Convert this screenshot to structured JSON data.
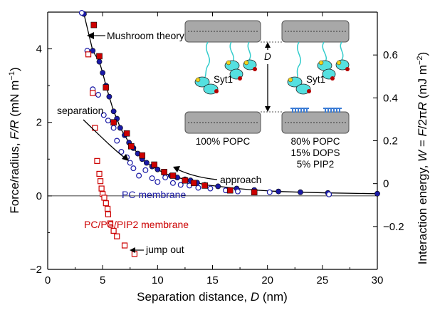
{
  "chart_data": {
    "type": "scatter",
    "title": "",
    "xlabel": {
      "main": "Separation distance, ",
      "var": "D",
      "unit": " (nm)"
    },
    "ylabel_left": {
      "main": "Force/radius, ",
      "var": "F/R",
      "unit": " (mN m",
      "sup": "−1",
      "close": ")"
    },
    "ylabel_right": {
      "main": "Interaction energy, ",
      "var": "W",
      "eq": " = ",
      "var2": "F",
      "slash": "/2π",
      "var3": "R",
      "unit": " (mJ m",
      "sup": "−2",
      "close": ")"
    },
    "xlim": [
      0,
      30
    ],
    "ylim_left": [
      -2,
      5
    ],
    "ylim_right": [
      -0.4,
      0.8
    ],
    "x_ticks": [
      "0",
      "5",
      "10",
      "15",
      "20",
      "25",
      "30"
    ],
    "y_ticks_left": [
      "−2",
      "0",
      "2",
      "4"
    ],
    "y_ticks_right": [
      "−0.2",
      "0",
      "0.2",
      "0.4",
      "0.6"
    ],
    "grid": false,
    "series": [
      {
        "name": "PC membrane approach",
        "marker": "filled-circle",
        "color": "#1a1aa6",
        "points": [
          [
            3.3,
            4.95
          ],
          [
            4.1,
            3.95
          ],
          [
            4.7,
            3.65
          ],
          [
            5.0,
            3.35
          ],
          [
            5.3,
            3.0
          ],
          [
            5.6,
            2.7
          ],
          [
            6.0,
            2.3
          ],
          [
            6.3,
            2.1
          ],
          [
            6.6,
            1.85
          ],
          [
            7.0,
            1.65
          ],
          [
            7.4,
            1.45
          ],
          [
            7.8,
            1.3
          ],
          [
            8.2,
            1.15
          ],
          [
            8.6,
            1.0
          ],
          [
            9.0,
            0.9
          ],
          [
            9.5,
            0.8
          ],
          [
            10.0,
            0.72
          ],
          [
            10.6,
            0.62
          ],
          [
            11.2,
            0.55
          ],
          [
            11.8,
            0.5
          ],
          [
            12.5,
            0.45
          ],
          [
            13.0,
            0.42
          ],
          [
            13.6,
            0.36
          ],
          [
            14.3,
            0.3
          ],
          [
            15.5,
            0.26
          ],
          [
            17.2,
            0.2
          ],
          [
            18.8,
            0.16
          ],
          [
            21.0,
            0.12
          ],
          [
            23.0,
            0.1
          ],
          [
            25.5,
            0.08
          ],
          [
            30.0,
            0.06
          ]
        ]
      },
      {
        "name": "PC membrane separation",
        "marker": "open-circle",
        "color": "#1a1aa6",
        "points": [
          [
            3.1,
            4.98
          ],
          [
            3.6,
            3.95
          ],
          [
            4.1,
            2.9
          ],
          [
            4.6,
            2.75
          ],
          [
            5.1,
            2.2
          ],
          [
            5.5,
            2.05
          ],
          [
            6.0,
            1.85
          ],
          [
            6.3,
            1.5
          ],
          [
            6.7,
            1.2
          ],
          [
            7.2,
            1.05
          ],
          [
            7.5,
            0.9
          ],
          [
            7.8,
            0.75
          ],
          [
            8.3,
            0.55
          ],
          [
            8.9,
            0.7
          ],
          [
            9.5,
            0.48
          ],
          [
            10.0,
            0.38
          ],
          [
            10.7,
            0.5
          ],
          [
            11.4,
            0.35
          ],
          [
            12.1,
            0.3
          ],
          [
            12.9,
            0.28
          ],
          [
            13.7,
            0.22
          ],
          [
            14.8,
            0.2
          ],
          [
            16.2,
            0.15
          ],
          [
            17.3,
            0.12
          ],
          [
            20.2,
            0.1
          ],
          [
            25.6,
            0.04
          ]
        ]
      },
      {
        "name": "PC/PS/PIP2 membrane approach",
        "marker": "filled-square",
        "color": "#cc0000",
        "points": [
          [
            4.2,
            4.65
          ],
          [
            4.7,
            3.8
          ],
          [
            5.3,
            2.95
          ],
          [
            6.0,
            2.0
          ],
          [
            7.2,
            1.7
          ],
          [
            7.6,
            1.35
          ],
          [
            8.6,
            1.1
          ],
          [
            9.7,
            0.85
          ],
          [
            10.6,
            0.65
          ],
          [
            11.4,
            0.55
          ],
          [
            12.5,
            0.42
          ],
          [
            13.3,
            0.35
          ],
          [
            14.3,
            0.28
          ],
          [
            16.6,
            0.15
          ],
          [
            18.8,
            0.1
          ]
        ]
      },
      {
        "name": "PC/PS/PIP2 membrane separation",
        "marker": "open-square",
        "color": "#cc0000",
        "points": [
          [
            3.7,
            3.85
          ],
          [
            4.1,
            2.8
          ],
          [
            4.3,
            1.85
          ],
          [
            4.5,
            0.95
          ],
          [
            4.7,
            0.6
          ],
          [
            4.8,
            0.4
          ],
          [
            4.9,
            0.2
          ],
          [
            5.0,
            0.05
          ],
          [
            5.15,
            -0.05
          ],
          [
            5.3,
            -0.2
          ],
          [
            5.45,
            -0.35
          ],
          [
            5.5,
            -0.5
          ],
          [
            5.7,
            -0.75
          ],
          [
            6.0,
            -0.95
          ],
          [
            6.3,
            -1.1
          ],
          [
            7.0,
            -1.35
          ],
          [
            7.9,
            -1.58
          ]
        ]
      }
    ],
    "fit_curve_label": "Mushroom theory",
    "annotations": {
      "mushroom": "Mushroom theory",
      "separation": "separation",
      "approach": "approach",
      "jump_out": "jump out",
      "pc_membrane": "PC membrane",
      "pcpspip2_membrane": "PC/PS/PIP2 membrane"
    },
    "inset": {
      "left_label_lipid": "100% POPC",
      "right_label_lipids": [
        "80% POPC",
        "15% DOPS",
        "5% PIP2"
      ],
      "protein_label": "Syt1",
      "distance_label": "D"
    }
  },
  "colors": {
    "blue": "#1a1aa6",
    "red": "#cc0000",
    "membrane_fill": "#a8a8a8",
    "protein_fill": "#55e0e0",
    "linker": "#33cccc",
    "yellow": "#f2d21a",
    "dark_red": "#b30000"
  }
}
